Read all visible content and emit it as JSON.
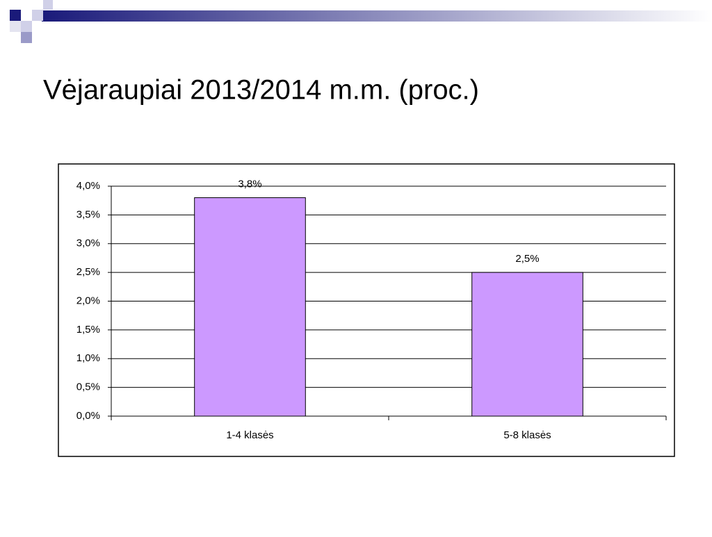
{
  "chart_data": {
    "type": "bar",
    "title": "Vėjaraupiai 2013/2014 m.m. (proc.)",
    "categories": [
      "1-4 klasės",
      "5-8 klasės"
    ],
    "values": [
      3.8,
      2.5
    ],
    "value_labels": [
      "3,8%",
      "2,5%"
    ],
    "color": "#cc99ff",
    "ylim": [
      0,
      4
    ],
    "yticks": [
      {
        "value": 0,
        "label": "0,0%"
      },
      {
        "value": 0.5,
        "label": "0,5%"
      },
      {
        "value": 1,
        "label": "1,0%"
      },
      {
        "value": 1.5,
        "label": "1,5%"
      },
      {
        "value": 2,
        "label": "2,0%"
      },
      {
        "value": 2.5,
        "label": "2,5%"
      },
      {
        "value": 3,
        "label": "3,0%"
      },
      {
        "value": 3.5,
        "label": "3,5%"
      },
      {
        "value": 4,
        "label": "4,0%"
      }
    ],
    "grid": true
  }
}
